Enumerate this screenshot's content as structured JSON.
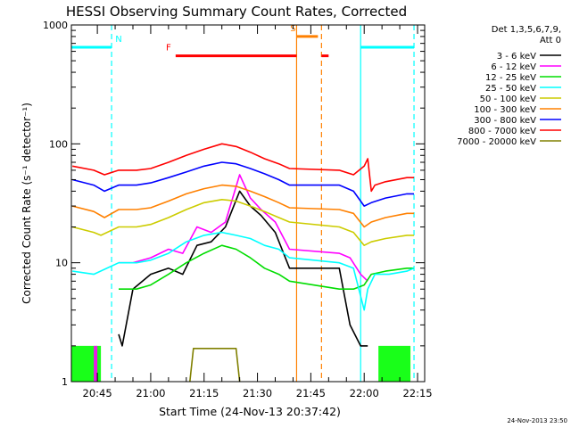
{
  "chart_data": {
    "type": "line",
    "title": "HESSI Observing Summary Count Rates, Corrected",
    "xlabel": "Start Time (24-Nov-13 20:37:42)",
    "ylabel": "Corrected Count Rate (s⁻¹ detector⁻¹)",
    "timestamp": "24-Nov-2013 23:50",
    "yscale": "log",
    "ylim": [
      1,
      1000
    ],
    "xlim": [
      "20:37:42",
      "22:17:00"
    ],
    "x_ticks": [
      "20:45",
      "21:00",
      "21:15",
      "21:30",
      "21:45",
      "22:00",
      "22:15"
    ],
    "y_ticks": [
      "1",
      "10",
      "100",
      "1000"
    ],
    "legend_header": [
      "Det 1,3,5,6,7,9,",
      "Att 0"
    ],
    "legend_position": "right",
    "series": [
      {
        "name": "3 - 6 keV",
        "color": "#000000",
        "points": [
          [
            "20:51",
            2.5
          ],
          [
            "20:52",
            2.0
          ],
          [
            "20:55",
            6
          ],
          [
            "21:00",
            8
          ],
          [
            "21:05",
            9
          ],
          [
            "21:09",
            8
          ],
          [
            "21:13",
            14
          ],
          [
            "21:17",
            15
          ],
          [
            "21:21",
            20
          ],
          [
            "21:25",
            40
          ],
          [
            "21:28",
            30
          ],
          [
            "21:31",
            25
          ],
          [
            "21:35",
            18
          ],
          [
            "21:39",
            9
          ],
          [
            "21:53",
            9
          ],
          [
            "21:56",
            3
          ],
          [
            "21:59",
            2
          ],
          [
            "22:01",
            2
          ]
        ]
      },
      {
        "name": "6 - 12 keV",
        "color": "#ff00ff",
        "points": [
          [
            "20:51",
            10
          ],
          [
            "20:55",
            10
          ],
          [
            "21:00",
            11
          ],
          [
            "21:05",
            13
          ],
          [
            "21:09",
            12
          ],
          [
            "21:13",
            20
          ],
          [
            "21:17",
            18
          ],
          [
            "21:21",
            22
          ],
          [
            "21:25",
            55
          ],
          [
            "21:28",
            35
          ],
          [
            "21:31",
            28
          ],
          [
            "21:35",
            22
          ],
          [
            "21:39",
            13
          ],
          [
            "21:53",
            12
          ],
          [
            "21:56",
            11
          ],
          [
            "21:59",
            8
          ],
          [
            "22:01",
            7
          ]
        ]
      },
      {
        "name": "12 - 25 keV",
        "color": "#00dd00",
        "points": [
          [
            "20:51",
            6
          ],
          [
            "20:56",
            6
          ],
          [
            "21:00",
            6.5
          ],
          [
            "21:05",
            8
          ],
          [
            "21:10",
            10
          ],
          [
            "21:15",
            12
          ],
          [
            "21:20",
            14
          ],
          [
            "21:24",
            13
          ],
          [
            "21:28",
            11
          ],
          [
            "21:32",
            9
          ],
          [
            "21:36",
            8
          ],
          [
            "21:39",
            7
          ],
          [
            "21:53",
            6
          ],
          [
            "21:57",
            6
          ],
          [
            "22:00",
            6.5
          ],
          [
            "22:02",
            8
          ],
          [
            "22:06",
            8.5
          ],
          [
            "22:12",
            9
          ],
          [
            "22:14",
            9
          ]
        ]
      },
      {
        "name": "25 - 50 keV",
        "color": "#00ffff",
        "points": [
          [
            "20:38",
            8.5
          ],
          [
            "20:44",
            8
          ],
          [
            "20:51",
            10
          ],
          [
            "20:56",
            10
          ],
          [
            "21:00",
            10.5
          ],
          [
            "21:05",
            12
          ],
          [
            "21:10",
            15
          ],
          [
            "21:15",
            17
          ],
          [
            "21:20",
            18
          ],
          [
            "21:24",
            17
          ],
          [
            "21:28",
            16
          ],
          [
            "21:32",
            14
          ],
          [
            "21:36",
            13
          ],
          [
            "21:39",
            11
          ],
          [
            "21:53",
            10
          ],
          [
            "21:57",
            9
          ],
          [
            "22:00",
            4
          ],
          [
            "22:01",
            6
          ],
          [
            "22:03",
            8
          ],
          [
            "22:07",
            8
          ],
          [
            "22:12",
            8.5
          ],
          [
            "22:14",
            9
          ]
        ]
      },
      {
        "name": "50 - 100 keV",
        "color": "#cccc00",
        "points": [
          [
            "20:38",
            20
          ],
          [
            "20:44",
            18
          ],
          [
            "20:46",
            17
          ],
          [
            "20:51",
            20
          ],
          [
            "20:56",
            20
          ],
          [
            "21:00",
            21
          ],
          [
            "21:05",
            24
          ],
          [
            "21:10",
            28
          ],
          [
            "21:15",
            32
          ],
          [
            "21:20",
            34
          ],
          [
            "21:24",
            33
          ],
          [
            "21:28",
            30
          ],
          [
            "21:32",
            27
          ],
          [
            "21:36",
            24
          ],
          [
            "21:39",
            22
          ],
          [
            "21:53",
            20
          ],
          [
            "21:57",
            18
          ],
          [
            "22:00",
            14
          ],
          [
            "22:02",
            15
          ],
          [
            "22:06",
            16
          ],
          [
            "22:12",
            17
          ],
          [
            "22:14",
            17
          ]
        ]
      },
      {
        "name": "100 - 300 keV",
        "color": "#ff8000",
        "points": [
          [
            "20:38",
            30
          ],
          [
            "20:44",
            27
          ],
          [
            "20:47",
            24
          ],
          [
            "20:51",
            28
          ],
          [
            "20:56",
            28
          ],
          [
            "21:00",
            29
          ],
          [
            "21:05",
            33
          ],
          [
            "21:10",
            38
          ],
          [
            "21:15",
            42
          ],
          [
            "21:20",
            45
          ],
          [
            "21:24",
            44
          ],
          [
            "21:28",
            40
          ],
          [
            "21:32",
            36
          ],
          [
            "21:36",
            32
          ],
          [
            "21:39",
            29
          ],
          [
            "21:53",
            28
          ],
          [
            "21:57",
            26
          ],
          [
            "22:00",
            20
          ],
          [
            "22:02",
            22
          ],
          [
            "22:06",
            24
          ],
          [
            "22:12",
            26
          ],
          [
            "22:14",
            26
          ]
        ]
      },
      {
        "name": "300 - 800 keV",
        "color": "#0000ff",
        "points": [
          [
            "20:38",
            50
          ],
          [
            "20:44",
            45
          ],
          [
            "20:47",
            40
          ],
          [
            "20:51",
            45
          ],
          [
            "20:56",
            45
          ],
          [
            "21:00",
            47
          ],
          [
            "21:05",
            52
          ],
          [
            "21:10",
            58
          ],
          [
            "21:15",
            65
          ],
          [
            "21:20",
            70
          ],
          [
            "21:24",
            68
          ],
          [
            "21:28",
            62
          ],
          [
            "21:32",
            56
          ],
          [
            "21:36",
            50
          ],
          [
            "21:39",
            45
          ],
          [
            "21:53",
            45
          ],
          [
            "21:57",
            40
          ],
          [
            "22:00",
            30
          ],
          [
            "22:02",
            32
          ],
          [
            "22:06",
            35
          ],
          [
            "22:12",
            38
          ],
          [
            "22:14",
            38
          ]
        ]
      },
      {
        "name": "800 - 7000 keV",
        "color": "#ff0000",
        "points": [
          [
            "20:38",
            65
          ],
          [
            "20:44",
            60
          ],
          [
            "20:47",
            55
          ],
          [
            "20:51",
            60
          ],
          [
            "20:56",
            60
          ],
          [
            "21:00",
            62
          ],
          [
            "21:05",
            70
          ],
          [
            "21:10",
            80
          ],
          [
            "21:15",
            90
          ],
          [
            "21:20",
            100
          ],
          [
            "21:24",
            95
          ],
          [
            "21:28",
            85
          ],
          [
            "21:32",
            75
          ],
          [
            "21:36",
            68
          ],
          [
            "21:39",
            62
          ],
          [
            "21:53",
            60
          ],
          [
            "21:57",
            55
          ],
          [
            "22:00",
            65
          ],
          [
            "22:01",
            75
          ],
          [
            "22:02",
            40
          ],
          [
            "22:03",
            45
          ],
          [
            "22:06",
            48
          ],
          [
            "22:12",
            52
          ],
          [
            "22:14",
            52
          ]
        ]
      },
      {
        "name": "7000 - 20000 keV",
        "color": "#808000",
        "points": [
          [
            "21:11",
            1
          ],
          [
            "21:12",
            1.9
          ],
          [
            "21:16",
            1.9
          ],
          [
            "21:20",
            1.9
          ],
          [
            "21:24",
            1.9
          ],
          [
            "21:25",
            1
          ]
        ]
      }
    ],
    "mode_bars": [
      {
        "label": "N",
        "color": "#00ffff",
        "label_at": "20:51",
        "segments": [
          [
            "20:37:42",
            "20:49"
          ],
          [
            "21:59",
            "22:14"
          ]
        ]
      },
      {
        "label": "F",
        "color": "#ff0000",
        "label_at": "21:05",
        "segments": [
          [
            "21:07",
            "21:41"
          ],
          [
            "21:48",
            "21:50"
          ]
        ]
      },
      {
        "label": "S",
        "color": "#ff8000",
        "label_at": "21:40",
        "segments": [
          [
            "21:41",
            "21:47"
          ]
        ]
      }
    ],
    "vertical_lines": [
      {
        "time": "20:49",
        "color": "#00ffff",
        "style": "dashed"
      },
      {
        "time": "21:41",
        "color": "#ff8000",
        "style": "solid"
      },
      {
        "time": "21:48",
        "color": "#ff8000",
        "style": "dashed"
      },
      {
        "time": "21:59",
        "color": "#00ffff",
        "style": "solid"
      },
      {
        "time": "22:14",
        "color": "#00ffff",
        "style": "dashed"
      }
    ],
    "low_count_blocks": [
      {
        "color": "#00ff00",
        "from": "20:37:42",
        "to": "20:46"
      },
      {
        "color": "#ff00ff",
        "from": "20:44",
        "to": "20:45"
      },
      {
        "color": "#00ff00",
        "from": "22:04",
        "to": "22:13"
      }
    ]
  }
}
